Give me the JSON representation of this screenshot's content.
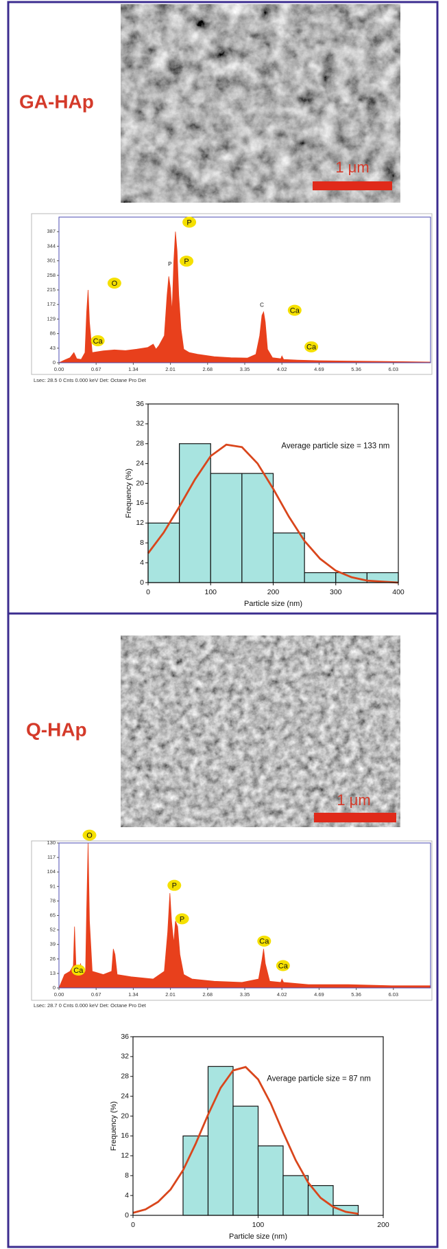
{
  "panels": [
    {
      "label": "GA-HAp",
      "scale_bar": "1 μm"
    },
    {
      "label": "Q-HAp",
      "scale_bar": "1 μm"
    }
  ],
  "chart_data": [
    {
      "type": "area",
      "color": "#e8401c",
      "x": [
        0,
        0.1,
        0.2,
        0.27,
        0.32,
        0.4,
        0.47,
        0.5,
        0.525,
        0.55,
        0.6,
        0.8,
        1.0,
        1.2,
        1.4,
        1.6,
        1.7,
        1.75,
        1.8,
        1.9,
        1.95,
        1.98,
        2.01,
        2.04,
        2.07,
        2.1,
        2.13,
        2.16,
        2.2,
        2.25,
        2.35,
        2.5,
        2.8,
        3.1,
        3.4,
        3.55,
        3.62,
        3.66,
        3.69,
        3.72,
        3.76,
        3.85,
        4.0,
        4.02,
        4.05,
        4.3,
        4.7,
        5.2,
        5.8,
        6.3,
        6.7
      ],
      "values": [
        0,
        8,
        15,
        30,
        12,
        10,
        30,
        150,
        215,
        120,
        30,
        35,
        38,
        36,
        40,
        45,
        55,
        40,
        50,
        80,
        200,
        255,
        220,
        150,
        300,
        387,
        330,
        200,
        100,
        40,
        30,
        25,
        18,
        15,
        14,
        25,
        80,
        140,
        150,
        120,
        40,
        15,
        12,
        20,
        10,
        8,
        6,
        5,
        4,
        3,
        2
      ],
      "xlim": [
        0,
        6.7
      ],
      "ylim": [
        0,
        430
      ],
      "xticks": [
        {
          "value": 0,
          "label": "0.00"
        },
        0.67,
        1.34,
        2.01,
        2.68,
        3.35,
        4.02,
        4.69,
        5.36,
        6.03
      ],
      "yticks": [
        0,
        43,
        86,
        129,
        172,
        215,
        258,
        301,
        344,
        387
      ],
      "annotations": [
        {
          "text": "P",
          "badge": true
        },
        {
          "text": "P",
          "badge": true
        },
        {
          "text": "O",
          "badge": true
        },
        {
          "text": "Ca",
          "badge": true
        },
        {
          "text": "Ca",
          "badge": true
        },
        {
          "text": "Ca",
          "badge": true
        },
        {
          "text": "P",
          "badge": false
        },
        {
          "text": "C",
          "badge": false
        }
      ],
      "footer": "Lsec: 28.5 0 Cnts 0.000 keV Det: Octane Pro Det"
    },
    {
      "type": "histogram",
      "color": "#a8e4e0",
      "bins": [
        0,
        50,
        100,
        150,
        200,
        250,
        300,
        350,
        400
      ],
      "values": [
        12,
        28,
        22,
        22,
        10,
        2,
        2,
        2
      ],
      "fit_curve": {
        "color": "#d9461c",
        "x": [
          0,
          25,
          50,
          75,
          100,
          125,
          150,
          175,
          200,
          225,
          250,
          275,
          300,
          325,
          350,
          375,
          400
        ],
        "values": [
          5.9,
          10.1,
          15.3,
          20.8,
          25.5,
          27.8,
          27.3,
          24.0,
          18.9,
          13.3,
          8.4,
          4.8,
          2.4,
          1.1,
          0.4,
          0.2,
          0
        ]
      },
      "xlim": [
        0,
        400
      ],
      "ylim": [
        0,
        36
      ],
      "xticks": [
        0,
        100,
        200,
        300,
        400
      ],
      "yticks": [
        0,
        4,
        8,
        12,
        16,
        20,
        24,
        28,
        32,
        36
      ],
      "xlabel": "Particle size (nm)",
      "ylabel": "Frequency (%)",
      "annotation": "Average particle size = 133 nm"
    },
    {
      "type": "area",
      "color": "#e8401c",
      "x": [
        0,
        0.1,
        0.2,
        0.26,
        0.28,
        0.31,
        0.36,
        0.39,
        0.42,
        0.48,
        0.5,
        0.525,
        0.55,
        0.6,
        0.8,
        0.95,
        0.98,
        1.01,
        1.05,
        1.3,
        1.7,
        1.9,
        1.96,
        2.0,
        2.03,
        2.07,
        2.1,
        2.14,
        2.18,
        2.25,
        2.4,
        2.8,
        3.3,
        3.6,
        3.66,
        3.69,
        3.72,
        3.8,
        4.0,
        4.02,
        4.05,
        4.5,
        5.2,
        6.0,
        6.7
      ],
      "values": [
        0,
        12,
        15,
        20,
        55,
        15,
        12,
        22,
        12,
        15,
        70,
        130,
        60,
        15,
        12,
        15,
        35,
        30,
        12,
        10,
        8,
        15,
        50,
        85,
        60,
        40,
        60,
        55,
        30,
        12,
        8,
        6,
        5,
        8,
        25,
        35,
        22,
        6,
        5,
        8,
        5,
        3,
        3,
        2,
        2
      ],
      "xlim": [
        0,
        6.7
      ],
      "ylim": [
        0,
        130
      ],
      "xticks": [
        {
          "value": 0,
          "label": "0.00"
        },
        0.67,
        1.34,
        2.01,
        2.68,
        3.35,
        4.02,
        4.69,
        5.36,
        6.03
      ],
      "yticks": [
        0,
        13,
        26,
        39,
        52,
        65,
        78,
        91,
        104,
        117,
        130
      ],
      "annotations": [
        {
          "text": "O",
          "badge": true
        },
        {
          "text": "P",
          "badge": true
        },
        {
          "text": "P",
          "badge": true
        },
        {
          "text": "Ca",
          "badge": true
        },
        {
          "text": "Ca",
          "badge": true
        },
        {
          "text": "Ca",
          "badge": true
        }
      ],
      "footer": "Lsec: 28.7 0 Cnts 0.000 keV Det: Octane Pro Det"
    },
    {
      "type": "histogram",
      "color": "#a8e4e0",
      "bins": [
        40,
        60,
        80,
        100,
        120,
        140,
        160,
        180
      ],
      "values": [
        16,
        30,
        22,
        14,
        8,
        6,
        2
      ],
      "fit_curve": {
        "color": "#d9461c",
        "x": [
          0,
          10,
          20,
          30,
          40,
          50,
          60,
          70,
          80,
          90,
          100,
          110,
          120,
          130,
          140,
          150,
          160,
          170,
          180
        ],
        "values": [
          0.5,
          1.2,
          2.7,
          5.2,
          9.1,
          14.4,
          20.3,
          25.7,
          29.2,
          29.9,
          27.4,
          22.6,
          16.7,
          11.1,
          6.6,
          3.5,
          1.7,
          0.7,
          0.3
        ]
      },
      "xlim": [
        0,
        200
      ],
      "ylim": [
        0,
        36
      ],
      "xticks": [
        0,
        100,
        200
      ],
      "yticks": [
        0,
        4,
        8,
        12,
        16,
        20,
        24,
        28,
        32,
        36
      ],
      "xlabel": "Particle size (nm)",
      "ylabel": "Frequency (%)",
      "annotation": "Average particle size = 87 nm"
    }
  ]
}
